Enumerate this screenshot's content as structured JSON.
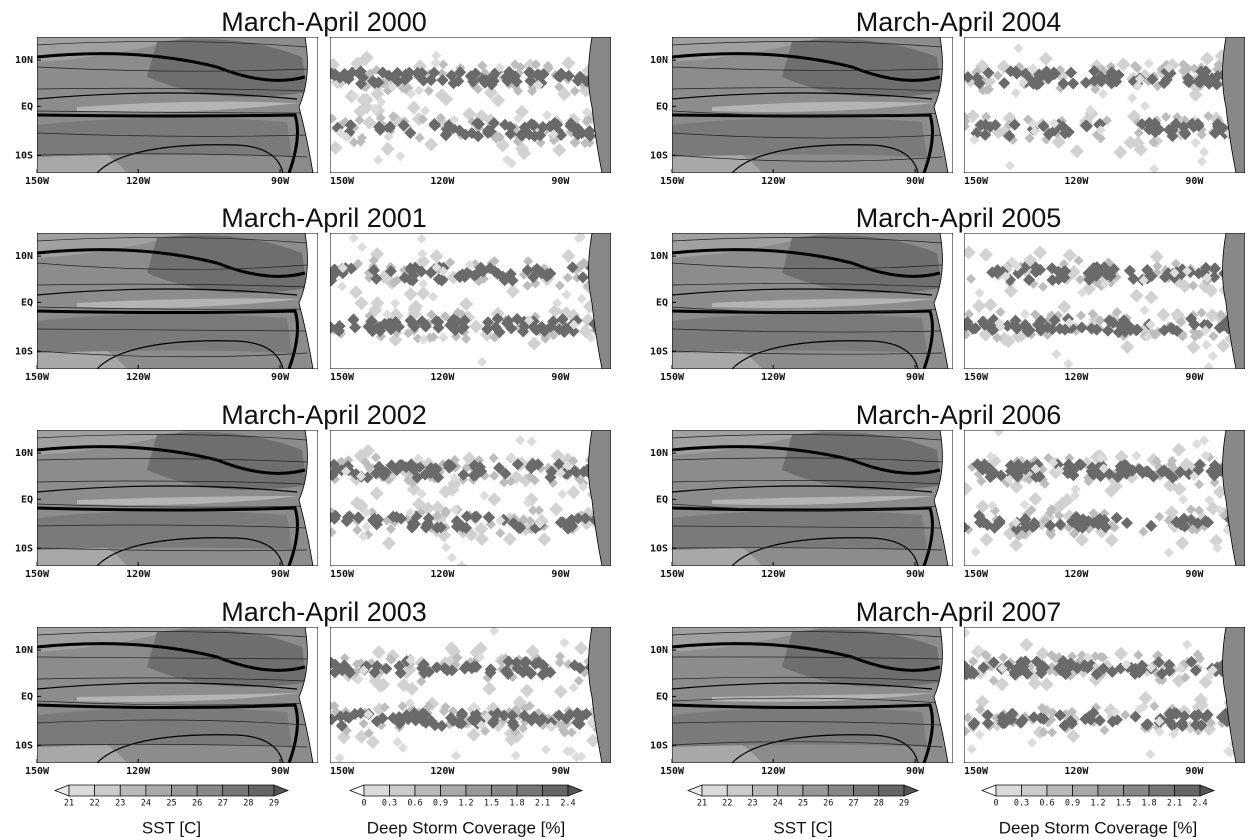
{
  "panels": [
    {
      "title": "March-April 2000"
    },
    {
      "title": "March-April 2001"
    },
    {
      "title": "March-April 2002"
    },
    {
      "title": "March-April 2003"
    },
    {
      "title": "March-April 2004"
    },
    {
      "title": "March-April 2005"
    },
    {
      "title": "March-April 2006"
    },
    {
      "title": "March-April 2007"
    }
  ],
  "lon_labels": [
    "150W",
    "120W",
    "90W"
  ],
  "lat_labels": [
    "10N",
    "EQ",
    "10S"
  ],
  "colorbars": [
    {
      "label": "SST [C]",
      "ticks": [
        21,
        22,
        23,
        24,
        25,
        26,
        27,
        28,
        29
      ]
    },
    {
      "label": "Deep Storm Coverage [%]",
      "ticks": [
        0,
        0.3,
        0.6,
        0.9,
        1.2,
        1.5,
        1.8,
        2.1,
        2.4
      ]
    }
  ]
}
